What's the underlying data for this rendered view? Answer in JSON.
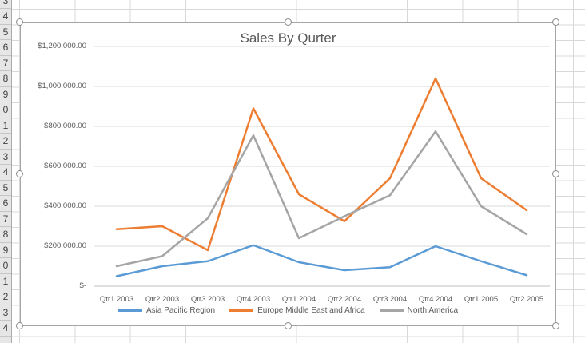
{
  "sheet": {
    "row_digits": [
      "3",
      "4",
      "5",
      "6",
      "7",
      "8",
      "9",
      "0",
      "1",
      "2",
      "3",
      "4",
      "5",
      "6",
      "7",
      "8",
      "9",
      "0",
      "1",
      "2",
      "3",
      "4"
    ],
    "grid_color": "#d8d8d8",
    "header_bg": "#e6e6e6"
  },
  "chart": {
    "title": "Sales By Qurter",
    "title_color": "#595959",
    "axis_text_color": "#595959",
    "gridline_color": "#d9d9d9",
    "axis_line_color": "#bfbfbf",
    "y_axis": {
      "tick_labels": [
        "$1,200,000.00",
        "$1,000,000.00",
        "$800,000.00",
        "$600,000.00",
        "$400,000.00",
        "$200,000.00",
        "$-"
      ],
      "tick_values": [
        1200000,
        1000000,
        800000,
        600000,
        400000,
        200000,
        0
      ]
    }
  },
  "chart_data": {
    "type": "line",
    "title": "Sales By Qurter",
    "xlabel": "",
    "ylabel": "",
    "ylim": [
      0,
      1200000
    ],
    "y_tick_step": 200000,
    "grid": true,
    "legend_position": "bottom",
    "categories": [
      "Qtr1 2003",
      "Qtr2 2003",
      "Qtr3 2003",
      "Qtr4 2003",
      "Qtr1 2004",
      "Qtr2 2004",
      "Qtr3 2004",
      "Qtr4 2004",
      "Qtr1 2005",
      "Qtr2 2005"
    ],
    "series": [
      {
        "name": "Asia Pacific Region",
        "color": "#5B9BD5",
        "values": [
          50000,
          100000,
          125000,
          205000,
          120000,
          80000,
          95000,
          200000,
          125000,
          55000
        ]
      },
      {
        "name": "Europe Middle East and Africa",
        "color": "#ED7D31",
        "values": [
          285000,
          300000,
          180000,
          890000,
          460000,
          325000,
          540000,
          1040000,
          540000,
          380000
        ]
      },
      {
        "name": "North America",
        "color": "#A5A5A5",
        "values": [
          100000,
          150000,
          340000,
          755000,
          240000,
          350000,
          455000,
          775000,
          400000,
          260000
        ]
      }
    ]
  }
}
